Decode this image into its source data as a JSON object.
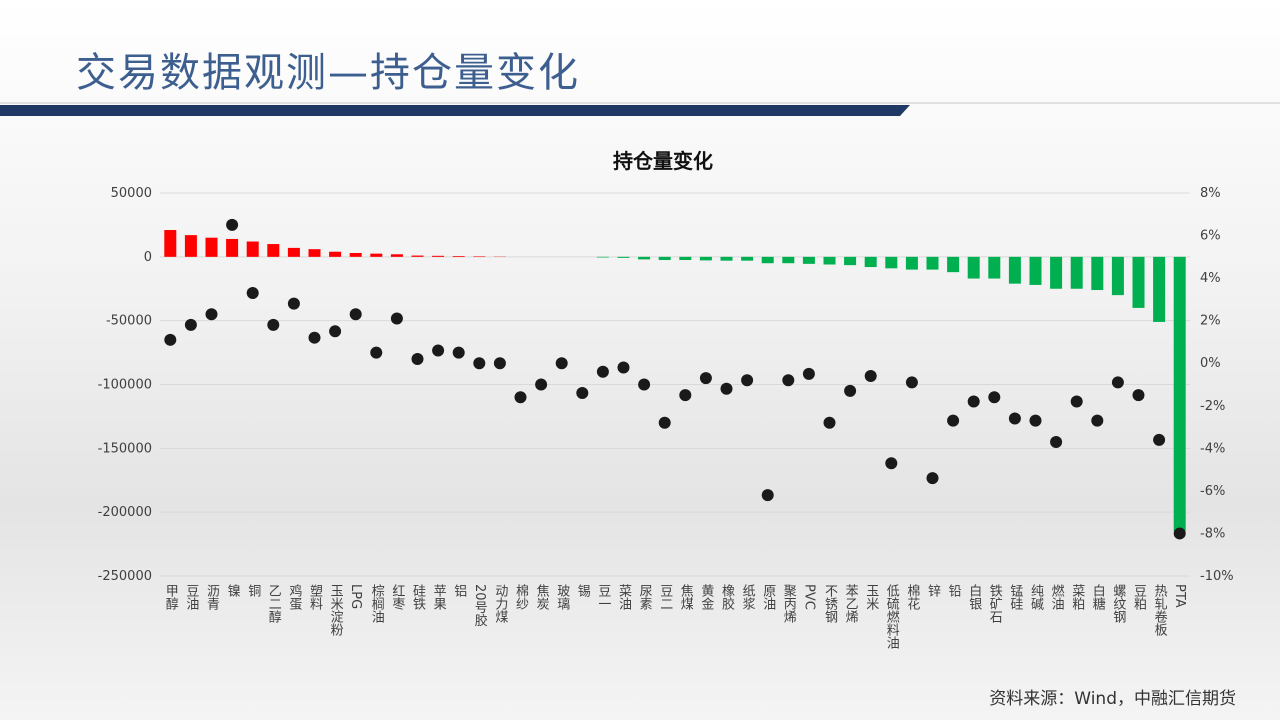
{
  "header": {
    "title": "交易数据观测—持仓量变化"
  },
  "chart_data": {
    "type": "bar",
    "title": "持仓量变化",
    "categories": [
      "甲醇",
      "豆油",
      "沥青",
      "镍",
      "铜",
      "乙二醇",
      "鸡蛋",
      "塑料",
      "玉米淀粉",
      "LPG",
      "棕榈油",
      "红枣",
      "硅铁",
      "苹果",
      "铝",
      "20号胶",
      "动力煤",
      "棉纱",
      "焦炭",
      "玻璃",
      "锡",
      "豆一",
      "菜油",
      "尿素",
      "豆二",
      "焦煤",
      "黄金",
      "橡胶",
      "纸浆",
      "原油",
      "聚丙烯",
      "PVC",
      "不锈钢",
      "苯乙烯",
      "玉米",
      "低硫燃料油",
      "棉花",
      "锌",
      "铅",
      "白银",
      "铁矿石",
      "锰硅",
      "纯碱",
      "燃油",
      "菜粕",
      "白糖",
      "螺纹钢",
      "豆粕",
      "热轧卷板",
      "PTA"
    ],
    "series": [
      {
        "type": "bar",
        "color": "#ff0000",
        "negative_color": "#00b050",
        "values": [
          21000,
          17000,
          15000,
          14000,
          12000,
          10000,
          7000,
          6000,
          4000,
          3000,
          2500,
          2000,
          1000,
          800,
          600,
          400,
          200,
          0,
          0,
          0,
          0,
          -500,
          -800,
          -2000,
          -2500,
          -2500,
          -2800,
          -3000,
          -3000,
          -5000,
          -5000,
          -5500,
          -6000,
          -6500,
          -8000,
          -9000,
          -10000,
          -10000,
          -12000,
          -17000,
          -17000,
          -21000,
          -22000,
          -25000,
          -25000,
          -26000,
          -30000,
          -40000,
          -51000,
          -215000
        ]
      },
      {
        "type": "scatter",
        "axis": "y2",
        "color": "#1a1a1a",
        "values": [
          1.1,
          1.8,
          2.3,
          6.5,
          3.3,
          1.8,
          2.8,
          1.2,
          1.5,
          2.3,
          0.5,
          2.1,
          0.2,
          0.6,
          0.5,
          0,
          0,
          -1.6,
          -1.0,
          0,
          -1.4,
          -0.4,
          -0.2,
          -1.0,
          -2.8,
          -1.5,
          -0.7,
          -1.2,
          -0.8,
          -6.2,
          -0.8,
          -0.5,
          -2.8,
          -1.3,
          -0.6,
          -4.7,
          -0.9,
          -5.4,
          -2.7,
          -1.8,
          -1.6,
          -2.6,
          -2.7,
          -3.7,
          -1.8,
          -2.7,
          -0.9,
          -1.5,
          -3.6,
          -8.0
        ]
      }
    ],
    "ylim": [
      -250000,
      50000
    ],
    "yticks": [
      -250000,
      -200000,
      -150000,
      -100000,
      -50000,
      0,
      50000
    ],
    "y2lim": [
      -10,
      8
    ],
    "y2ticks": [
      {
        "value": -10,
        "label": "-10%"
      },
      {
        "value": -8,
        "label": "-8%"
      },
      {
        "value": -6,
        "label": "-6%"
      },
      {
        "value": -4,
        "label": "-4%"
      },
      {
        "value": -2,
        "label": "-2%"
      },
      {
        "value": 0,
        "label": "0%"
      },
      {
        "value": 2,
        "label": "2%"
      },
      {
        "value": 4,
        "label": "4%"
      },
      {
        "value": 6,
        "label": "6%"
      },
      {
        "value": 8,
        "label": "8%"
      }
    ],
    "grid": true
  },
  "footer": {
    "source": "资料来源：Wind，中融汇信期货"
  }
}
